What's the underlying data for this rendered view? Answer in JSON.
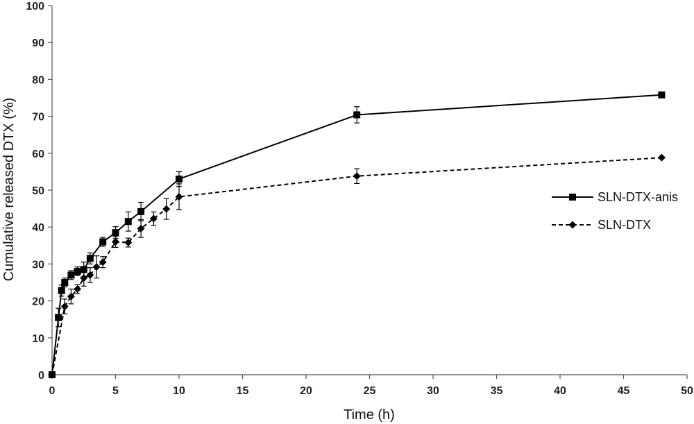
{
  "chart_data": {
    "type": "line",
    "xlabel": "Time (h)",
    "ylabel": "Cumulative released DTX (%)",
    "xlim": [
      0,
      50
    ],
    "ylim": [
      0,
      100
    ],
    "xticks": [
      0,
      5,
      10,
      15,
      20,
      25,
      30,
      35,
      40,
      45,
      50
    ],
    "yticks": [
      0,
      10,
      20,
      30,
      40,
      50,
      60,
      70,
      80,
      90,
      100
    ],
    "grid": false,
    "legend_position": "right",
    "series": [
      {
        "name": "SLN-DTX-anis",
        "marker": "square",
        "line_style": "solid",
        "color": "#000000",
        "x": [
          0,
          0.5,
          0.75,
          1,
          1.5,
          2,
          2.5,
          3,
          4,
          5,
          6,
          7,
          10,
          24,
          48
        ],
        "y": [
          0,
          15.5,
          22.8,
          25,
          27,
          28,
          28.5,
          31.5,
          36,
          38.5,
          41.5,
          44.2,
          53,
          70.4,
          75.8
        ],
        "error": [
          0,
          2.5,
          1.5,
          1.2,
          1.2,
          1.2,
          2.0,
          1.5,
          1.2,
          1.6,
          2.6,
          2.5,
          2.0,
          2.2,
          0
        ]
      },
      {
        "name": "SLN-DTX",
        "marker": "diamond",
        "line_style": "dashed",
        "color": "#000000",
        "x": [
          0,
          1,
          1.5,
          2,
          2.5,
          3,
          3.5,
          4,
          5,
          6,
          7,
          8,
          9,
          10,
          24,
          48
        ],
        "y": [
          0,
          18.5,
          21.2,
          23.2,
          26.2,
          27,
          29.2,
          30.5,
          36,
          35.8,
          39.6,
          42.3,
          44.9,
          48.2,
          53.8,
          58.8
        ],
        "error": [
          0,
          2.0,
          2.0,
          1.2,
          2.2,
          2.0,
          3.0,
          1.5,
          1.5,
          1.2,
          2.4,
          1.8,
          2.8,
          3.5,
          2.0,
          0
        ]
      }
    ]
  }
}
